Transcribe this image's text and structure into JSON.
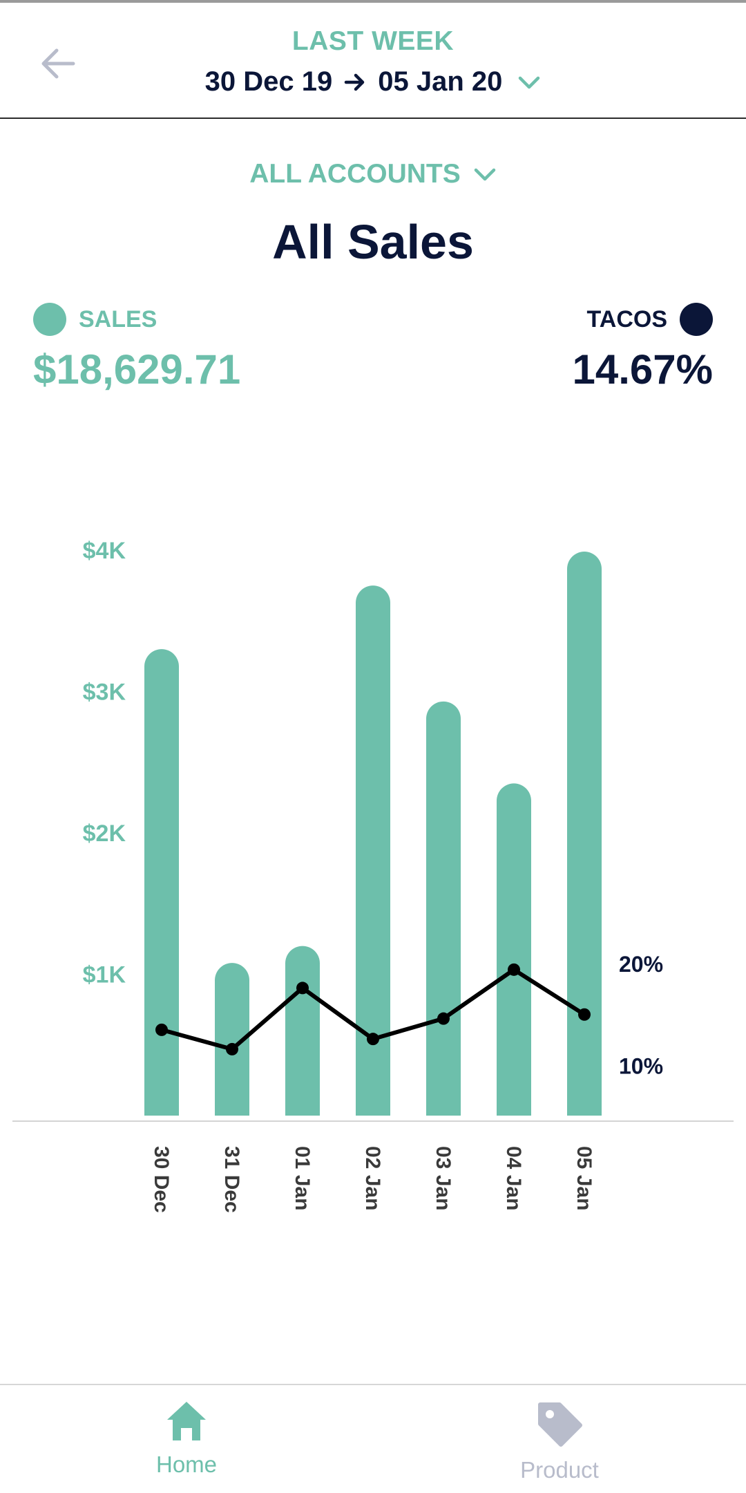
{
  "header": {
    "period_label": "LAST WEEK",
    "date_start": "30 Dec 19",
    "date_end": "05 Jan 20"
  },
  "filter": {
    "accounts_label": "ALL ACCOUNTS"
  },
  "page": {
    "title": "All Sales"
  },
  "metrics": {
    "sales": {
      "label": "SALES",
      "value": "$18,629.71",
      "color": "#6dbfab"
    },
    "tacos": {
      "label": "TACOS",
      "value": "14.67%",
      "color": "#0b1638"
    }
  },
  "chart_data": {
    "type": "bar",
    "categories": [
      "30 Dec",
      "31 Dec",
      "01 Jan",
      "02 Jan",
      "03 Jan",
      "04 Jan",
      "05 Jan"
    ],
    "series": [
      {
        "name": "SALES",
        "type": "bar",
        "axis": "left",
        "color": "#6dbfab",
        "values": [
          3300,
          1080,
          1200,
          3750,
          2930,
          2350,
          3990
        ]
      },
      {
        "name": "TACOS",
        "type": "line",
        "axis": "right",
        "color": "#000000",
        "values": [
          13.5,
          11.6,
          17.6,
          12.6,
          14.6,
          19.4,
          15.0
        ]
      }
    ],
    "y_left": {
      "ticks": [
        "$1K",
        "$2K",
        "$3K",
        "$4K"
      ],
      "tick_values": [
        1000,
        2000,
        3000,
        4000
      ],
      "ylim": [
        0,
        4000
      ]
    },
    "y_right": {
      "ticks": [
        "10%",
        "20%"
      ],
      "tick_values": [
        10,
        20
      ]
    },
    "grid": false
  },
  "nav": {
    "home_label": "Home",
    "product_label": "Product",
    "active_color": "#6dbfab",
    "inactive_color": "#b8bccb"
  },
  "icons": {
    "back": "arrow-left-icon",
    "range_arrow": "arrow-right-icon",
    "dropdown": "chevron-down-icon",
    "home": "home-icon",
    "product": "tag-icon"
  }
}
